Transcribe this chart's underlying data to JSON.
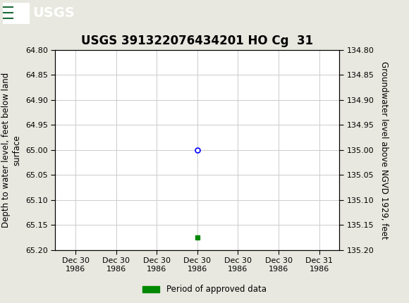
{
  "title": "USGS 391322076434201 HO Cg  31",
  "ylabel_left": "Depth to water level, feet below land\nsurface",
  "ylabel_right": "Groundwater level above NGVD 1929, feet",
  "ylim_left": [
    64.8,
    65.2
  ],
  "ylim_right": [
    135.2,
    134.8
  ],
  "yticks_left": [
    64.8,
    64.85,
    64.9,
    64.95,
    65.0,
    65.05,
    65.1,
    65.15,
    65.2
  ],
  "yticks_right": [
    135.2,
    135.15,
    135.1,
    135.05,
    135.0,
    134.95,
    134.9,
    134.85,
    134.8
  ],
  "ytick_labels_right": [
    "135.20",
    "135.15",
    "135.10",
    "135.05",
    "135.00",
    "134.95",
    "134.90",
    "134.85",
    "134.80"
  ],
  "xlim": [
    -0.5,
    6.5
  ],
  "xtick_positions": [
    0,
    1,
    2,
    3,
    4,
    5,
    6
  ],
  "xtick_labels": [
    "Dec 30\n1986",
    "Dec 30\n1986",
    "Dec 30\n1986",
    "Dec 30\n1986",
    "Dec 30\n1986",
    "Dec 30\n1986",
    "Dec 31\n1986"
  ],
  "data_point_x": 3,
  "data_point_y": 65.0,
  "green_marker_x": 3,
  "green_marker_y": 65.175,
  "header_color": "#1b6b3a",
  "grid_color": "#cccccc",
  "background_color": "#e8e8e0",
  "plot_bg_color": "#ffffff",
  "legend_label": "Period of approved data",
  "legend_color": "#008800",
  "title_fontsize": 12,
  "label_fontsize": 8.5,
  "tick_fontsize": 8
}
